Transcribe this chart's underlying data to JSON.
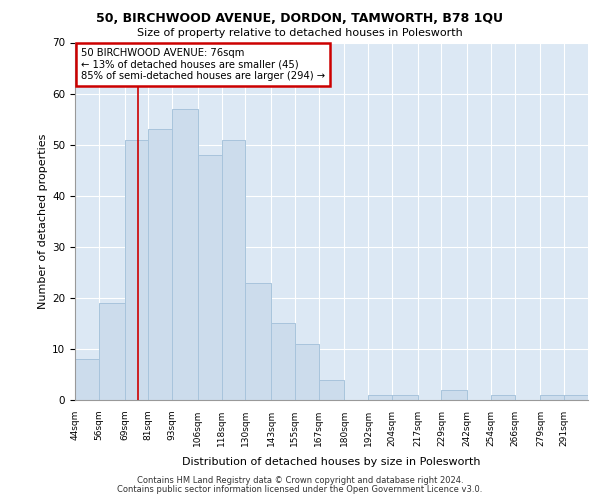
{
  "title1": "50, BIRCHWOOD AVENUE, DORDON, TAMWORTH, B78 1QU",
  "title2": "Size of property relative to detached houses in Polesworth",
  "xlabel": "Distribution of detached houses by size in Polesworth",
  "ylabel": "Number of detached properties",
  "bin_labels": [
    "44sqm",
    "56sqm",
    "69sqm",
    "81sqm",
    "93sqm",
    "106sqm",
    "118sqm",
    "130sqm",
    "143sqm",
    "155sqm",
    "167sqm",
    "180sqm",
    "192sqm",
    "204sqm",
    "217sqm",
    "229sqm",
    "242sqm",
    "254sqm",
    "266sqm",
    "279sqm",
    "291sqm"
  ],
  "bar_heights": [
    8,
    19,
    51,
    53,
    57,
    48,
    51,
    23,
    15,
    11,
    4,
    0,
    1,
    1,
    0,
    2,
    0,
    1,
    0,
    1,
    1
  ],
  "bar_color": "#ccdcec",
  "bar_edgecolor": "#a8c4dc",
  "background_color": "#dce8f4",
  "grid_color": "#ffffff",
  "annotation_text": "50 BIRCHWOOD AVENUE: 76sqm\n← 13% of detached houses are smaller (45)\n85% of semi-detached houses are larger (294) →",
  "annotation_box_edgecolor": "#cc0000",
  "vline_x_bin": 2,
  "vline_color": "#cc0000",
  "ylim": [
    0,
    70
  ],
  "yticks": [
    0,
    10,
    20,
    30,
    40,
    50,
    60,
    70
  ],
  "footer1": "Contains HM Land Registry data © Crown copyright and database right 2024.",
  "footer2": "Contains public sector information licensed under the Open Government Licence v3.0.",
  "bin_edges_sqm": [
    44,
    56,
    69,
    81,
    93,
    106,
    118,
    130,
    143,
    155,
    167,
    180,
    192,
    204,
    217,
    229,
    242,
    254,
    266,
    279,
    291,
    303
  ]
}
